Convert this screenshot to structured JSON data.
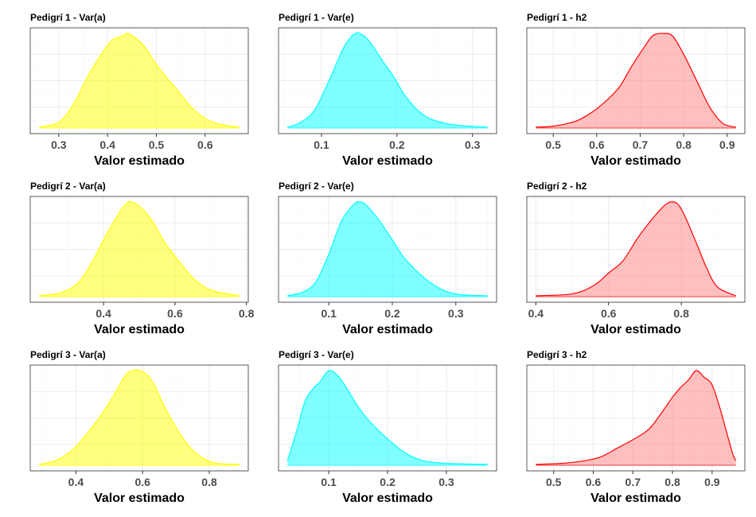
{
  "chart_data": [
    {
      "type": "area",
      "title": "Pedigrí 1 - Var(a)",
      "xlabel": "Valor estimado",
      "fill": "#ffff00",
      "stroke": "#ffff00",
      "xlim": [
        0.26,
        0.67
      ],
      "xticks": [
        "0.3",
        "0.4",
        "0.5",
        "0.6"
      ],
      "x": [
        0.26,
        0.3,
        0.33,
        0.36,
        0.39,
        0.41,
        0.43,
        0.44,
        0.46,
        0.48,
        0.5,
        0.52,
        0.54,
        0.57,
        0.6,
        0.63,
        0.67
      ],
      "y": [
        0.01,
        0.06,
        0.25,
        0.55,
        0.8,
        0.93,
        0.97,
        1.0,
        0.94,
        0.83,
        0.67,
        0.54,
        0.42,
        0.23,
        0.1,
        0.04,
        0.01
      ]
    },
    {
      "type": "area",
      "title": "Pedigrí 1 - Var(e)",
      "xlabel": "Valor estimado",
      "fill": "#00ffff",
      "stroke": "#00ffff",
      "xlim": [
        0.055,
        0.32
      ],
      "xticks": [
        "0.1",
        "0.2",
        "0.3"
      ],
      "x": [
        0.055,
        0.07,
        0.09,
        0.11,
        0.13,
        0.145,
        0.155,
        0.165,
        0.18,
        0.195,
        0.21,
        0.23,
        0.25,
        0.28,
        0.32
      ],
      "y": [
        0.01,
        0.05,
        0.18,
        0.5,
        0.86,
        1.0,
        0.98,
        0.9,
        0.72,
        0.55,
        0.35,
        0.17,
        0.08,
        0.03,
        0.01
      ]
    },
    {
      "type": "area",
      "title": "Pedigrí 1 - h2",
      "xlabel": "Valor estimado",
      "fill": "#ff8080",
      "stroke": "#ff0000",
      "xlim": [
        0.46,
        0.92
      ],
      "xticks": [
        "0.5",
        "0.6",
        "0.7",
        "0.8",
        "0.9"
      ],
      "x": [
        0.46,
        0.5,
        0.55,
        0.58,
        0.61,
        0.65,
        0.68,
        0.71,
        0.73,
        0.755,
        0.775,
        0.8,
        0.83,
        0.86,
        0.89,
        0.92
      ],
      "y": [
        0.01,
        0.02,
        0.07,
        0.14,
        0.24,
        0.42,
        0.65,
        0.86,
        0.98,
        1.0,
        0.97,
        0.78,
        0.5,
        0.22,
        0.05,
        0.01
      ]
    },
    {
      "type": "area",
      "title": "Pedigrí 2 - Var(a)",
      "xlabel": "Valor estimado",
      "fill": "#ffff00",
      "stroke": "#ffff00",
      "xlim": [
        0.22,
        0.78
      ],
      "xticks": [
        "0.4",
        "0.6",
        "0.8"
      ],
      "x": [
        0.22,
        0.28,
        0.33,
        0.37,
        0.4,
        0.43,
        0.46,
        0.48,
        0.51,
        0.54,
        0.57,
        0.61,
        0.65,
        0.7,
        0.78
      ],
      "y": [
        0.01,
        0.04,
        0.15,
        0.38,
        0.6,
        0.8,
        0.97,
        1.0,
        0.92,
        0.78,
        0.58,
        0.38,
        0.2,
        0.07,
        0.01
      ]
    },
    {
      "type": "area",
      "title": "Pedigrí 2 - Var(e)",
      "xlabel": "Valor estimado",
      "fill": "#00ffff",
      "stroke": "#00ffff",
      "xlim": [
        0.035,
        0.35
      ],
      "xticks": [
        "0.1",
        "0.2",
        "0.3"
      ],
      "x": [
        0.035,
        0.06,
        0.08,
        0.1,
        0.12,
        0.14,
        0.15,
        0.16,
        0.18,
        0.2,
        0.22,
        0.25,
        0.28,
        0.31,
        0.35
      ],
      "y": [
        0.01,
        0.05,
        0.16,
        0.45,
        0.8,
        0.98,
        1.0,
        0.96,
        0.8,
        0.6,
        0.4,
        0.2,
        0.07,
        0.02,
        0.01
      ]
    },
    {
      "type": "area",
      "title": "Pedigrí 2 - h2",
      "xlabel": "Valor estimado",
      "fill": "#ff8080",
      "stroke": "#ff0000",
      "xlim": [
        0.4,
        0.95
      ],
      "xticks": [
        "0.4",
        "0.6",
        "0.8"
      ],
      "x": [
        0.4,
        0.5,
        0.56,
        0.6,
        0.64,
        0.68,
        0.72,
        0.75,
        0.77,
        0.79,
        0.81,
        0.84,
        0.87,
        0.9,
        0.95
      ],
      "y": [
        0.01,
        0.03,
        0.12,
        0.25,
        0.38,
        0.62,
        0.82,
        0.95,
        1.0,
        0.98,
        0.85,
        0.58,
        0.3,
        0.1,
        0.01
      ]
    },
    {
      "type": "area",
      "title": "Pedigrí 3 - Var(a)",
      "xlabel": "Valor estimado",
      "fill": "#ffff00",
      "stroke": "#ffff00",
      "xlim": [
        0.29,
        0.89
      ],
      "xticks": [
        "0.4",
        "0.6",
        "0.8"
      ],
      "x": [
        0.29,
        0.34,
        0.39,
        0.43,
        0.47,
        0.5,
        0.53,
        0.55,
        0.57,
        0.6,
        0.63,
        0.66,
        0.7,
        0.75,
        0.81,
        0.89
      ],
      "y": [
        0.01,
        0.05,
        0.16,
        0.32,
        0.5,
        0.66,
        0.84,
        0.96,
        1.0,
        0.99,
        0.88,
        0.66,
        0.4,
        0.16,
        0.03,
        0.01
      ]
    },
    {
      "type": "area",
      "title": "Pedigrí 3 - Var(e)",
      "xlabel": "Valor estimado",
      "fill": "#00ffff",
      "stroke": "#00ffff",
      "xlim": [
        0.03,
        0.37
      ],
      "xticks": [
        "0.1",
        "0.2",
        "0.3"
      ],
      "x": [
        0.03,
        0.045,
        0.06,
        0.075,
        0.085,
        0.1,
        0.115,
        0.13,
        0.15,
        0.17,
        0.2,
        0.23,
        0.26,
        0.3,
        0.37
      ],
      "y": [
        0.05,
        0.35,
        0.68,
        0.82,
        0.88,
        1.0,
        0.95,
        0.82,
        0.62,
        0.46,
        0.28,
        0.13,
        0.05,
        0.02,
        0.01
      ]
    },
    {
      "type": "area",
      "title": "Pedigrí 3 - h2",
      "xlabel": "Valor estimado",
      "fill": "#ff8080",
      "stroke": "#ff0000",
      "xlim": [
        0.455,
        0.96
      ],
      "xticks": [
        "0.5",
        "0.6",
        "0.7",
        "0.8",
        "0.9"
      ],
      "x": [
        0.455,
        0.52,
        0.58,
        0.62,
        0.66,
        0.7,
        0.74,
        0.77,
        0.8,
        0.82,
        0.84,
        0.86,
        0.88,
        0.9,
        0.92,
        0.95,
        0.96
      ],
      "y": [
        0.01,
        0.02,
        0.05,
        0.09,
        0.18,
        0.27,
        0.38,
        0.54,
        0.72,
        0.82,
        0.9,
        1.0,
        0.93,
        0.85,
        0.6,
        0.15,
        0.05
      ]
    }
  ]
}
